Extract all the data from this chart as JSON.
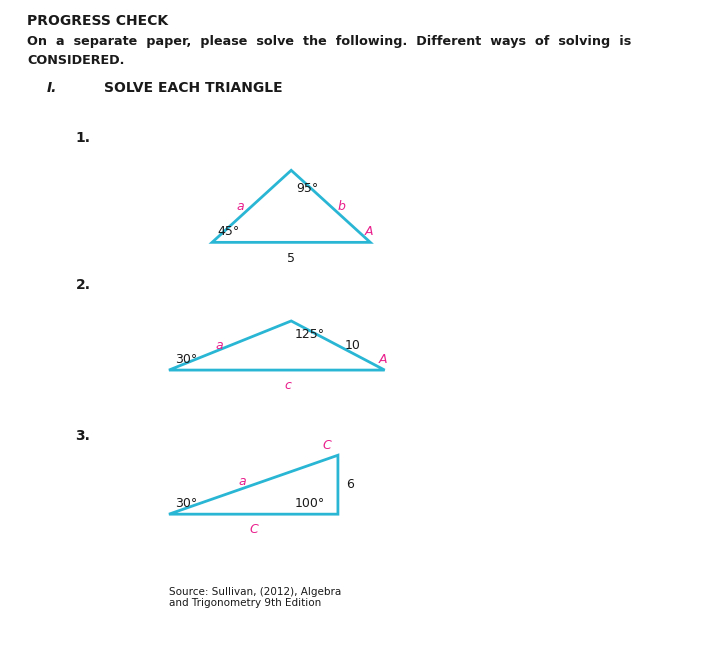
{
  "bg_color": "#ffffff",
  "title": "PROGRESS CHECK",
  "instruction_line1": "On  a  separate  paper,  please  solve  the  following.  Different  ways  of  solving  is",
  "instruction_line2": "CONSIDERED.",
  "section_label": "I.",
  "section_title": "SOLVE EACH TRIANGLE",
  "triangle_color": "#29b6d4",
  "pink": "#e91e8c",
  "black": "#1a1a1a",
  "tri1": {
    "number": "1.",
    "BL": [
      0.295,
      0.63
    ],
    "BR": [
      0.515,
      0.63
    ],
    "T": [
      0.405,
      0.74
    ],
    "top_angle": "95°",
    "bl_angle": "45°",
    "br_label": "A",
    "left_label": "a",
    "right_label": "b",
    "bot_label": "5"
  },
  "tri2": {
    "number": "2.",
    "BL": [
      0.235,
      0.435
    ],
    "BR": [
      0.535,
      0.435
    ],
    "T": [
      0.405,
      0.51
    ],
    "top_angle": "125°",
    "bl_angle": "30°",
    "br_label": "A",
    "left_label": "a",
    "right_label": "10",
    "bot_label": "c"
  },
  "tri3": {
    "number": "3.",
    "BL": [
      0.235,
      0.215
    ],
    "BR": [
      0.47,
      0.215
    ],
    "TR": [
      0.47,
      0.305
    ],
    "tr_label": "C",
    "bl_angle": "30°",
    "br_angle": "100°",
    "right_label": "6",
    "left_label": "a",
    "bot_label": "C"
  },
  "source": "Source: Sullivan, (2012), Algebra\nand Trigonometry 9th Edition"
}
